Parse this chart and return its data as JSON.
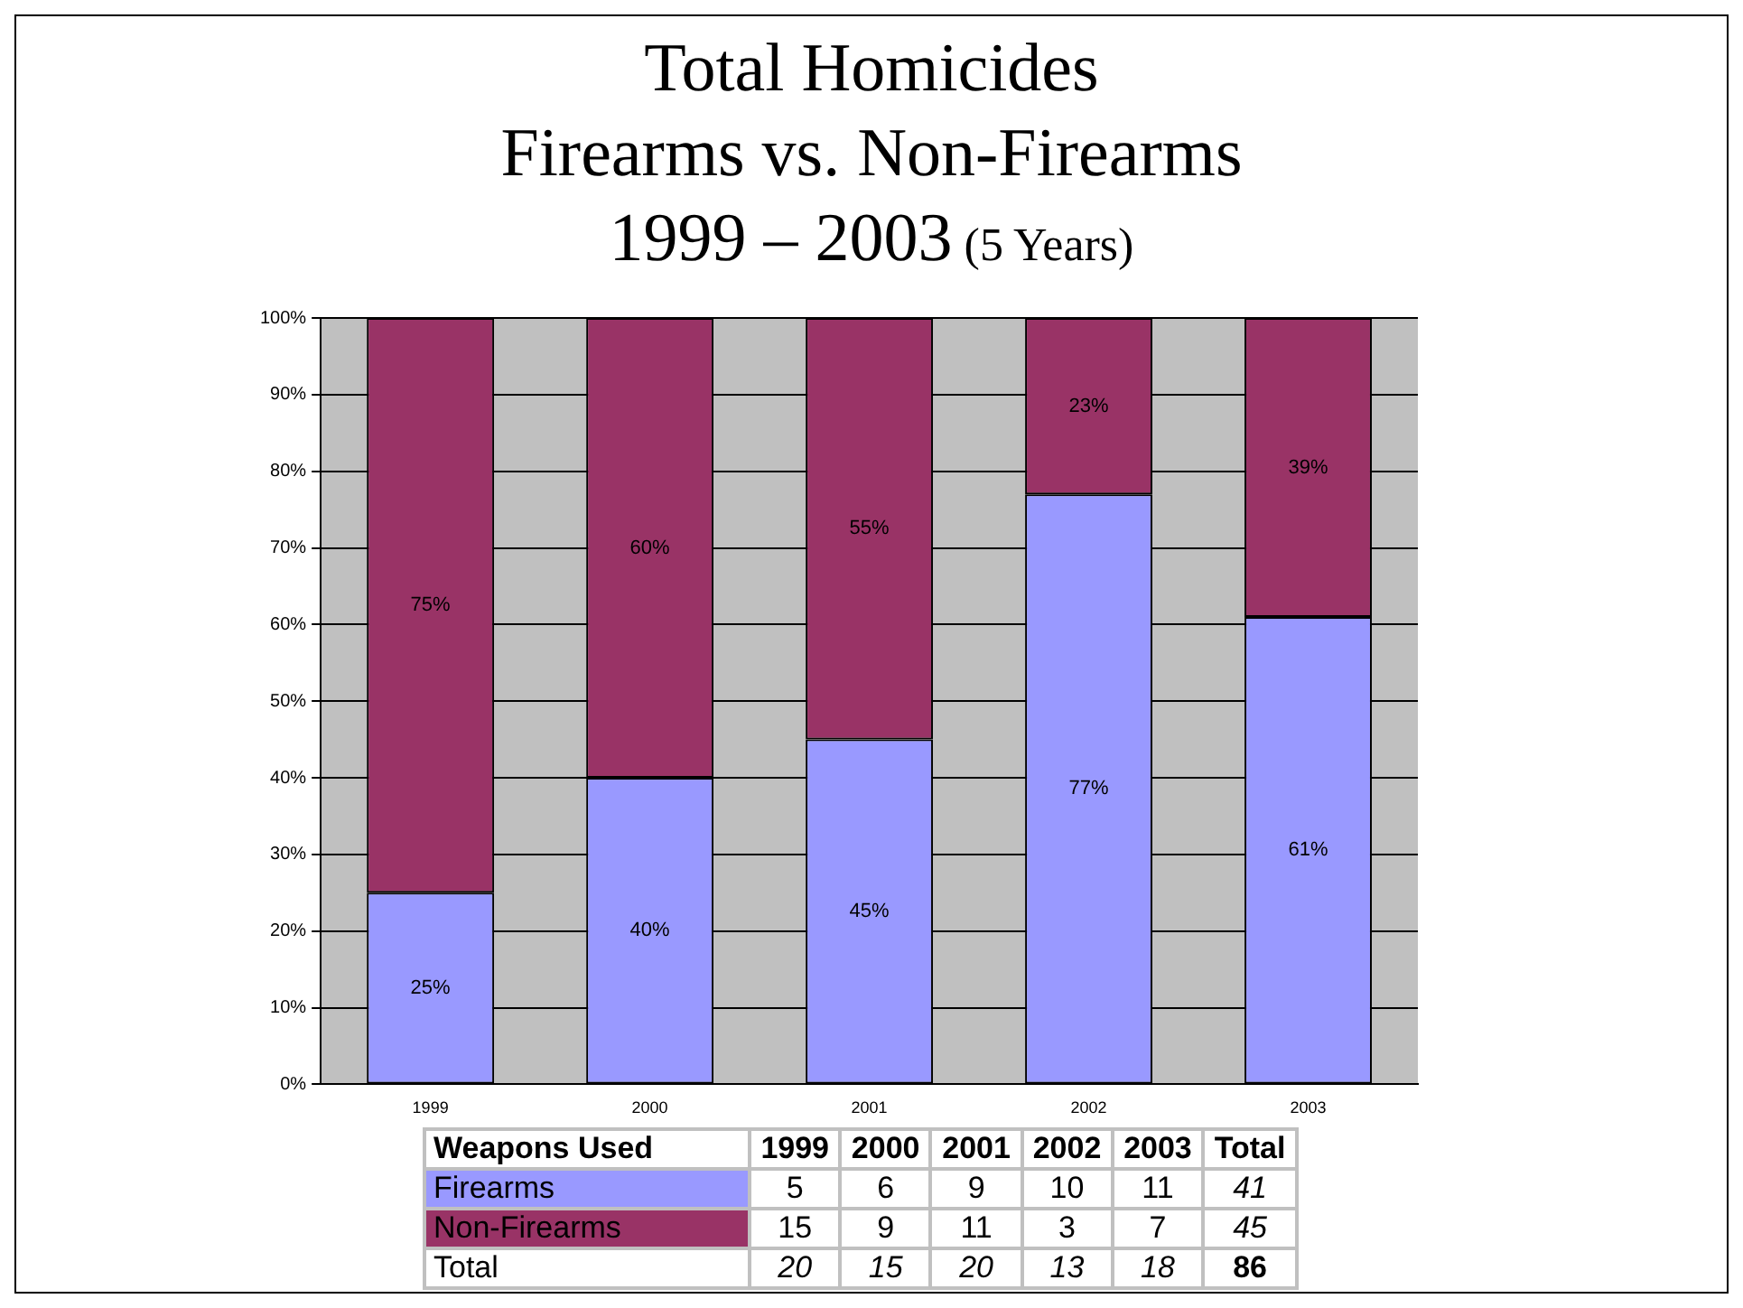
{
  "chart_data": [
    {
      "type": "bar",
      "title": "Total Homicides\nFirearms vs. Non-Firearms\n1999 – 2003",
      "subtitle": "(5 Years)",
      "categories": [
        "1999",
        "2000",
        "2001",
        "2002",
        "2003"
      ],
      "stacked": true,
      "ylim": [
        0,
        100
      ],
      "yticks": [
        {
          "value": 0,
          "label": "0%"
        },
        {
          "value": 10,
          "label": "10%"
        },
        {
          "value": 20,
          "label": "20%"
        },
        {
          "value": 30,
          "label": "30%"
        },
        {
          "value": 40,
          "label": "40%"
        },
        {
          "value": 50,
          "label": "50%"
        },
        {
          "value": 60,
          "label": "60%"
        },
        {
          "value": 70,
          "label": "70%"
        },
        {
          "value": 80,
          "label": "80%"
        },
        {
          "value": 90,
          "label": "90%"
        },
        {
          "value": 100,
          "label": "100%"
        }
      ],
      "grid": "y",
      "series": [
        {
          "color": "#9999ff",
          "values": [
            25,
            40,
            45,
            77,
            61
          ],
          "value_labels": [
            "25%",
            "40%",
            "45%",
            "77%",
            "61%"
          ]
        },
        {
          "color": "#993366",
          "values": [
            75,
            60,
            55,
            23,
            39
          ],
          "value_labels": [
            "75%",
            "60%",
            "55%",
            "23%",
            "39%"
          ]
        }
      ]
    },
    {
      "type": "heatmap",
      "ylabel": "Weapons Used",
      "categories": [
        "1999",
        "2000",
        "2001",
        "2002",
        "2003",
        "Total"
      ],
      "y_categories": [
        "Firearms",
        "Non-Firearms",
        "Total"
      ],
      "colors": [
        "#9999ff",
        "#993366",
        "#ffffff"
      ],
      "data_labels": true,
      "cells": [
        [
          5,
          6,
          9,
          10,
          11,
          41
        ],
        [
          15,
          9,
          11,
          3,
          7,
          45
        ],
        [
          20,
          15,
          20,
          13,
          18,
          86
        ]
      ]
    }
  ]
}
